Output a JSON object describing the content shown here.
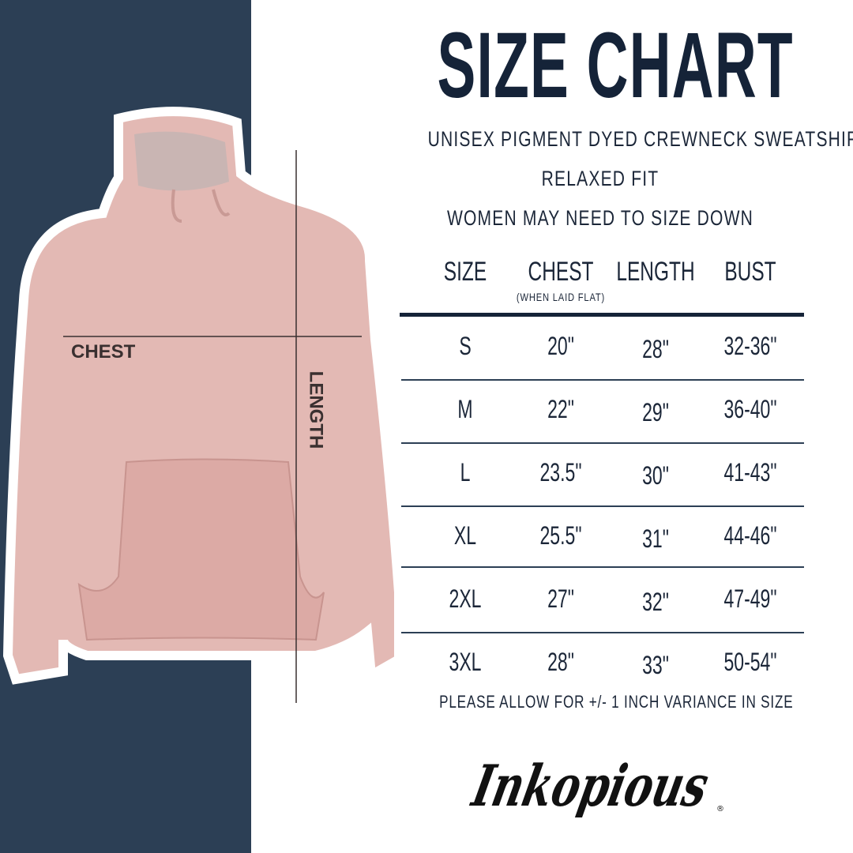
{
  "title": "SIZE CHART",
  "subtitle_lines": [
    "UNISEX PIGMENT DYED CREWNECK SWEATSHIRT",
    "RELAXED FIT",
    "WOMEN MAY NEED TO SIZE DOWN"
  ],
  "table": {
    "headers": [
      "SIZE",
      "CHEST",
      "LENGTH",
      "BUST"
    ],
    "chest_note": "(WHEN LAID FLAT)",
    "rows": [
      [
        "S",
        "20\"",
        "28\"",
        "32-36\""
      ],
      [
        "M",
        "22\"",
        "29\"",
        "36-40\""
      ],
      [
        "L",
        "23.5\"",
        "30\"",
        "41-43\""
      ],
      [
        "XL",
        "25.5\"",
        "31\"",
        "44-46\""
      ],
      [
        "2XL",
        "27\"",
        "32\"",
        "47-49\""
      ],
      [
        "3XL",
        "28\"",
        "33\"",
        "50-54\""
      ]
    ]
  },
  "diagram_labels": {
    "chest": "CHEST",
    "length": "LENGTH"
  },
  "footnote": "PLEASE ALLOW FOR +/- 1 INCH VARIANCE IN SIZE",
  "logo_text": "Inkopious",
  "colors": {
    "navy": "#2c3f55",
    "text": "#1b2638",
    "hoodie": "#e3b9b4"
  }
}
